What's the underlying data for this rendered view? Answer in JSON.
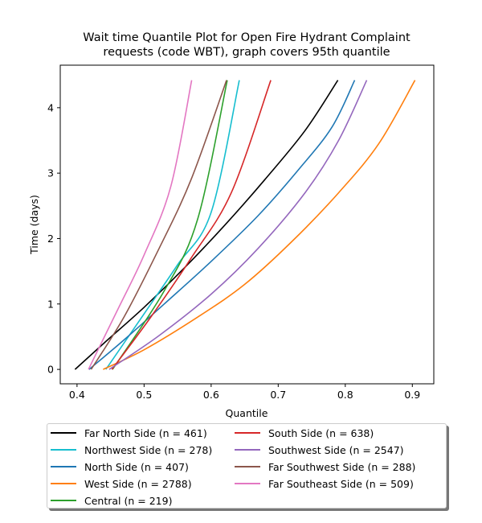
{
  "chart_data": {
    "type": "line",
    "title": "Wait time Quantile Plot for Open Fire Hydrant Complaint\nrequests (code WBT), graph covers 95th quantile",
    "xlabel": "Quantile",
    "ylabel": "Time (days)",
    "xlim": [
      0.375,
      0.932
    ],
    "ylim": [
      -0.22,
      4.65
    ],
    "xticks": [
      "0.4",
      "0.5",
      "0.6",
      "0.7",
      "0.8",
      "0.9"
    ],
    "yticks": [
      "0",
      "1",
      "2",
      "3",
      "4"
    ],
    "grid": false,
    "legend_position": "below",
    "series": [
      {
        "name": "Far North Side (n = 461)",
        "color": "#000000",
        "points": [
          [
            0.397,
            0.0
          ],
          [
            0.44,
            0.4
          ],
          [
            0.5,
            0.95
          ],
          [
            0.56,
            1.55
          ],
          [
            0.62,
            2.2
          ],
          [
            0.68,
            2.9
          ],
          [
            0.74,
            3.65
          ],
          [
            0.789,
            4.42
          ]
        ]
      },
      {
        "name": "Northwest Side (n = 278)",
        "color": "#17becf",
        "points": [
          [
            0.443,
            0.0
          ],
          [
            0.5,
            0.85
          ],
          [
            0.55,
            1.6
          ],
          [
            0.6,
            2.4
          ],
          [
            0.642,
            4.42
          ]
        ]
      },
      {
        "name": "North Side (n = 407)",
        "color": "#1f77b4",
        "points": [
          [
            0.418,
            0.0
          ],
          [
            0.47,
            0.45
          ],
          [
            0.53,
            1.0
          ],
          [
            0.6,
            1.65
          ],
          [
            0.67,
            2.35
          ],
          [
            0.73,
            3.05
          ],
          [
            0.78,
            3.7
          ],
          [
            0.814,
            4.42
          ]
        ]
      },
      {
        "name": "West Side (n = 2788)",
        "color": "#ff7f0e",
        "points": [
          [
            0.439,
            0.0
          ],
          [
            0.5,
            0.3
          ],
          [
            0.58,
            0.8
          ],
          [
            0.65,
            1.3
          ],
          [
            0.72,
            1.95
          ],
          [
            0.79,
            2.7
          ],
          [
            0.85,
            3.45
          ],
          [
            0.904,
            4.42
          ]
        ]
      },
      {
        "name": "Central (n = 219)",
        "color": "#2ca02c",
        "points": [
          [
            0.453,
            0.0
          ],
          [
            0.53,
            1.2
          ],
          [
            0.58,
            2.3
          ],
          [
            0.624,
            4.42
          ]
        ]
      },
      {
        "name": "South Side (n = 638)",
        "color": "#d62728",
        "points": [
          [
            0.452,
            0.0
          ],
          [
            0.51,
            0.8
          ],
          [
            0.57,
            1.7
          ],
          [
            0.63,
            2.7
          ],
          [
            0.689,
            4.42
          ]
        ]
      },
      {
        "name": "Southwest Side (n = 2547)",
        "color": "#9467bd",
        "points": [
          [
            0.448,
            0.0
          ],
          [
            0.52,
            0.5
          ],
          [
            0.6,
            1.15
          ],
          [
            0.67,
            1.85
          ],
          [
            0.74,
            2.7
          ],
          [
            0.79,
            3.5
          ],
          [
            0.832,
            4.42
          ]
        ]
      },
      {
        "name": "Far Southwest Side (n = 288)",
        "color": "#8c564b",
        "points": [
          [
            0.421,
            0.0
          ],
          [
            0.47,
            0.8
          ],
          [
            0.52,
            1.8
          ],
          [
            0.57,
            2.9
          ],
          [
            0.623,
            4.42
          ]
        ]
      },
      {
        "name": "Far Southeast Side (n = 509)",
        "color": "#e377c2",
        "points": [
          [
            0.417,
            0.0
          ],
          [
            0.46,
            0.9
          ],
          [
            0.5,
            1.75
          ],
          [
            0.54,
            2.8
          ],
          [
            0.571,
            4.42
          ]
        ]
      }
    ]
  }
}
